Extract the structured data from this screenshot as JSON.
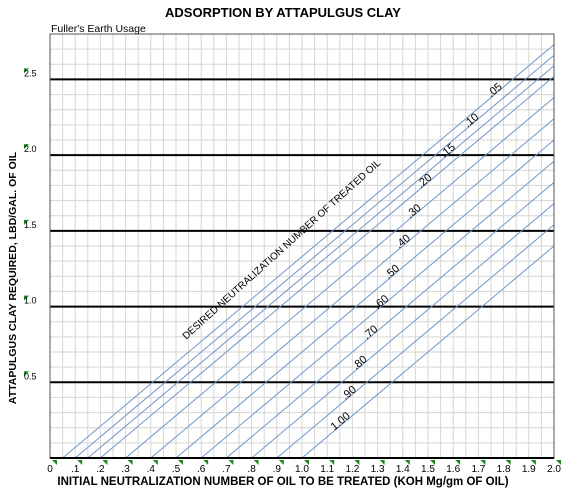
{
  "chart_data": {
    "type": "line",
    "title": "ADSORPTION BY ATTAPULGUS CLAY",
    "subtitle": "Fuller's Earth Usage",
    "xlabel": "INITIAL NEUTRALIZATION NUMBER OF OIL TO BE TREATED (KOH Mg/gm OF OIL)",
    "ylabel": "ATTAPULGUS CLAY REQUIRED, LBD/GAL. OF OIL",
    "xlim": [
      0,
      2.0
    ],
    "ylim": [
      0,
      2.8
    ],
    "grid": true,
    "x_ticks": [
      "0",
      ".1",
      ".2",
      ".3",
      ".4",
      ".5",
      ".6",
      ".7",
      ".8",
      ".9",
      "1.0",
      "1.1",
      "1.2",
      "1.3",
      "1.4",
      "1.5",
      "1.6",
      "1.7",
      "1.8",
      "1.9",
      "2.0"
    ],
    "y_ticks": [
      "0.5",
      "1.0",
      "1.5",
      "2.0",
      "2.5"
    ],
    "reference_lines_y": [
      0.5,
      1.0,
      1.5,
      2.0,
      2.5
    ],
    "curve_annotation": "DESIRED NEUTRALIZATION NUMBER OF TREATED OIL",
    "line_color": "#6d97c8",
    "slope": 1.4,
    "series": [
      {
        "name": ".05",
        "x0": 0.05
      },
      {
        "name": ".10",
        "x0": 0.1
      },
      {
        "name": ".15",
        "x0": 0.15
      },
      {
        "name": ".20",
        "x0": 0.2
      },
      {
        "name": ".30",
        "x0": 0.3
      },
      {
        "name": ".40",
        "x0": 0.4
      },
      {
        "name": ".50",
        "x0": 0.5
      },
      {
        "name": ".60",
        "x0": 0.6
      },
      {
        "name": ".70",
        "x0": 0.7
      },
      {
        "name": ".80",
        "x0": 0.8
      },
      {
        "name": ".90",
        "x0": 0.9
      },
      {
        "name": "1.00",
        "x0": 1.0
      }
    ]
  }
}
